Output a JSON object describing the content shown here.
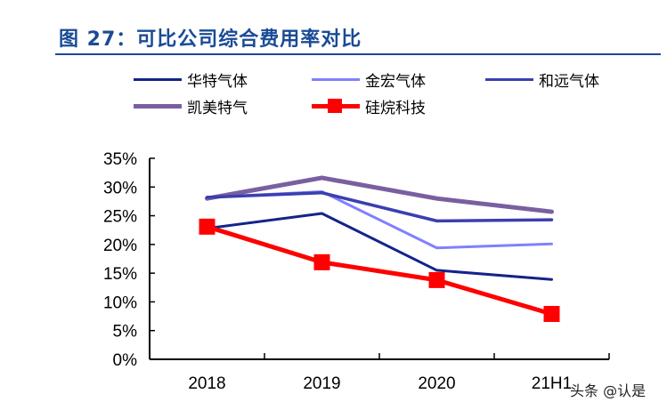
{
  "title": "图 27：可比公司综合费用率对比",
  "watermark": "头条 @认是",
  "chart_data": {
    "type": "line",
    "title": "图 27：可比公司综合费用率对比",
    "categories": [
      "2018",
      "2019",
      "2020",
      "21H1"
    ],
    "ylim": [
      0,
      35
    ],
    "yticks": [
      "0%",
      "5%",
      "10%",
      "15%",
      "20%",
      "25%",
      "30%",
      "35%"
    ],
    "grid": false,
    "legend": "top",
    "series": [
      {
        "name": "华特气体",
        "values": [
          22.8,
          25.4,
          15.5,
          13.9
        ],
        "color": "#14238a",
        "width": 3
      },
      {
        "name": "金宏气体",
        "values": [
          28.2,
          29.2,
          19.4,
          20.1
        ],
        "color": "#8080ff",
        "width": 3
      },
      {
        "name": "和远气体",
        "values": [
          28.2,
          29.0,
          24.1,
          24.3
        ],
        "color": "#3a3fb0",
        "width": 3.5
      },
      {
        "name": "凯美特气",
        "values": [
          28.0,
          31.6,
          28.0,
          25.7
        ],
        "color": "#7a5fa0",
        "width": 5
      },
      {
        "name": "硅烷科技",
        "values": [
          23.1,
          16.9,
          13.8,
          7.9
        ],
        "color": "#ff0000",
        "width": 5,
        "marker": "square"
      }
    ]
  }
}
